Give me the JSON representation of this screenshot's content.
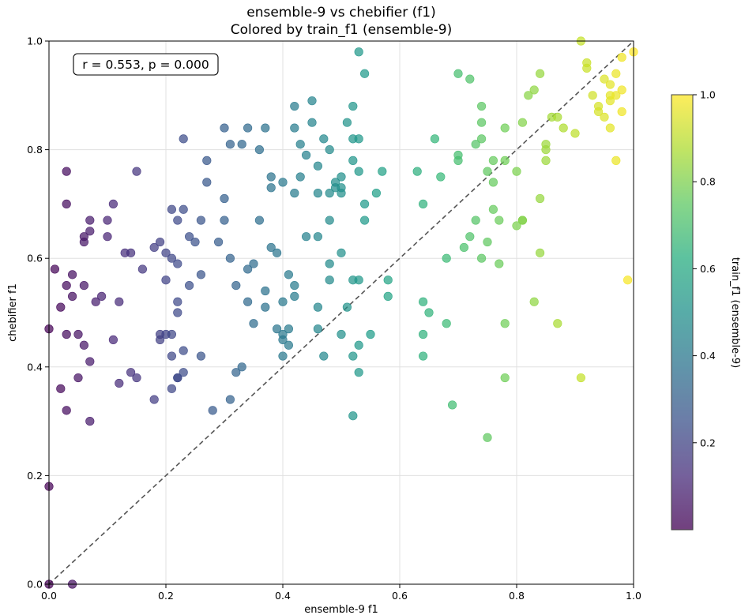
{
  "chart_data": {
    "type": "scatter",
    "title": "ensemble-9 vs chebifier (f1)",
    "subtitle": "Colored by train_f1 (ensemble-9)",
    "xlabel": "ensemble-9 f1",
    "ylabel": "chebifier f1",
    "xlim": [
      0,
      1
    ],
    "ylim": [
      0,
      1
    ],
    "x_ticks": [
      "0.0",
      "0.2",
      "0.4",
      "0.6",
      "0.8",
      "1.0"
    ],
    "y_ticks": [
      "0.0",
      "0.2",
      "0.4",
      "0.6",
      "0.8",
      "1.0"
    ],
    "grid": true,
    "reference_line": "y = x (dashed)",
    "annotation": "r = 0.553, p = 0.000",
    "annotation_placement": "top-left",
    "colormap": "viridis",
    "colorbar": {
      "label": "train_f1 (ensemble-9)",
      "range": [
        0,
        1
      ],
      "ticks": [
        "0.2",
        "0.4",
        "0.6",
        "0.8",
        "1.0"
      ]
    },
    "points": [
      [
        0.0,
        0.0
      ],
      [
        0.0,
        0.47
      ],
      [
        0.0,
        0.18
      ],
      [
        0.04,
        0.0
      ],
      [
        0.01,
        0.58
      ],
      [
        0.02,
        0.36
      ],
      [
        0.03,
        0.32
      ],
      [
        0.02,
        0.51
      ],
      [
        0.03,
        0.46
      ],
      [
        0.03,
        0.76
      ],
      [
        0.03,
        0.55
      ],
      [
        0.04,
        0.53
      ],
      [
        0.04,
        0.57
      ],
      [
        0.03,
        0.7
      ],
      [
        0.05,
        0.38
      ],
      [
        0.05,
        0.46
      ],
      [
        0.06,
        0.64
      ],
      [
        0.06,
        0.44
      ],
      [
        0.06,
        0.55
      ],
      [
        0.06,
        0.63
      ],
      [
        0.07,
        0.65
      ],
      [
        0.07,
        0.67
      ],
      [
        0.07,
        0.41
      ],
      [
        0.07,
        0.3
      ],
      [
        0.08,
        0.52
      ],
      [
        0.09,
        0.53
      ],
      [
        0.1,
        0.64
      ],
      [
        0.1,
        0.67
      ],
      [
        0.11,
        0.7
      ],
      [
        0.11,
        0.45
      ],
      [
        0.12,
        0.37
      ],
      [
        0.12,
        0.52
      ],
      [
        0.13,
        0.61
      ],
      [
        0.14,
        0.61
      ],
      [
        0.14,
        0.39
      ],
      [
        0.15,
        0.38
      ],
      [
        0.15,
        0.76
      ],
      [
        0.16,
        0.58
      ],
      [
        0.18,
        0.34
      ],
      [
        0.18,
        0.62
      ],
      [
        0.19,
        0.45
      ],
      [
        0.19,
        0.63
      ],
      [
        0.19,
        0.46
      ],
      [
        0.2,
        0.56
      ],
      [
        0.2,
        0.46
      ],
      [
        0.2,
        0.61
      ],
      [
        0.21,
        0.36
      ],
      [
        0.21,
        0.46
      ],
      [
        0.21,
        0.42
      ],
      [
        0.21,
        0.6
      ],
      [
        0.21,
        0.69
      ],
      [
        0.22,
        0.52
      ],
      [
        0.22,
        0.5
      ],
      [
        0.22,
        0.59
      ],
      [
        0.22,
        0.67
      ],
      [
        0.22,
        0.38
      ],
      [
        0.22,
        0.38
      ],
      [
        0.23,
        0.69
      ],
      [
        0.23,
        0.43
      ],
      [
        0.23,
        0.82
      ],
      [
        0.23,
        0.39
      ],
      [
        0.24,
        0.64
      ],
      [
        0.24,
        0.55
      ],
      [
        0.25,
        0.63
      ],
      [
        0.26,
        0.57
      ],
      [
        0.26,
        0.42
      ],
      [
        0.26,
        0.67
      ],
      [
        0.27,
        0.74
      ],
      [
        0.27,
        0.78
      ],
      [
        0.28,
        0.32
      ],
      [
        0.29,
        0.63
      ],
      [
        0.3,
        0.84
      ],
      [
        0.3,
        0.67
      ],
      [
        0.3,
        0.71
      ],
      [
        0.31,
        0.81
      ],
      [
        0.31,
        0.6
      ],
      [
        0.31,
        0.34
      ],
      [
        0.32,
        0.39
      ],
      [
        0.32,
        0.55
      ],
      [
        0.33,
        0.81
      ],
      [
        0.33,
        0.4
      ],
      [
        0.34,
        0.52
      ],
      [
        0.34,
        0.58
      ],
      [
        0.34,
        0.84
      ],
      [
        0.35,
        0.48
      ],
      [
        0.35,
        0.59
      ],
      [
        0.36,
        0.8
      ],
      [
        0.36,
        0.67
      ],
      [
        0.37,
        0.84
      ],
      [
        0.37,
        0.51
      ],
      [
        0.37,
        0.54
      ],
      [
        0.38,
        0.62
      ],
      [
        0.38,
        0.73
      ],
      [
        0.38,
        0.75
      ],
      [
        0.39,
        0.47
      ],
      [
        0.39,
        0.61
      ],
      [
        0.4,
        0.74
      ],
      [
        0.4,
        0.52
      ],
      [
        0.4,
        0.46
      ],
      [
        0.4,
        0.45
      ],
      [
        0.4,
        0.42
      ],
      [
        0.41,
        0.47
      ],
      [
        0.41,
        0.57
      ],
      [
        0.41,
        0.44
      ],
      [
        0.42,
        0.84
      ],
      [
        0.42,
        0.53
      ],
      [
        0.42,
        0.55
      ],
      [
        0.42,
        0.88
      ],
      [
        0.42,
        0.72
      ],
      [
        0.43,
        0.81
      ],
      [
        0.43,
        0.75
      ],
      [
        0.44,
        0.64
      ],
      [
        0.44,
        0.79
      ],
      [
        0.45,
        0.89
      ],
      [
        0.45,
        0.85
      ],
      [
        0.46,
        0.77
      ],
      [
        0.46,
        0.51
      ],
      [
        0.46,
        0.64
      ],
      [
        0.46,
        0.47
      ],
      [
        0.46,
        0.72
      ],
      [
        0.47,
        0.82
      ],
      [
        0.47,
        0.42
      ],
      [
        0.48,
        0.8
      ],
      [
        0.48,
        0.56
      ],
      [
        0.48,
        0.59
      ],
      [
        0.48,
        0.67
      ],
      [
        0.48,
        0.72
      ],
      [
        0.49,
        0.73
      ],
      [
        0.49,
        0.74
      ],
      [
        0.5,
        0.72
      ],
      [
        0.5,
        0.61
      ],
      [
        0.5,
        0.46
      ],
      [
        0.5,
        0.75
      ],
      [
        0.5,
        0.73
      ],
      [
        0.51,
        0.51
      ],
      [
        0.51,
        0.85
      ],
      [
        0.52,
        0.88
      ],
      [
        0.52,
        0.82
      ],
      [
        0.52,
        0.56
      ],
      [
        0.52,
        0.42
      ],
      [
        0.52,
        0.78
      ],
      [
        0.52,
        0.31
      ],
      [
        0.53,
        0.76
      ],
      [
        0.53,
        0.39
      ],
      [
        0.53,
        0.82
      ],
      [
        0.53,
        0.56
      ],
      [
        0.53,
        0.44
      ],
      [
        0.53,
        0.98
      ],
      [
        0.54,
        0.94
      ],
      [
        0.54,
        0.67
      ],
      [
        0.54,
        0.7
      ],
      [
        0.55,
        0.46
      ],
      [
        0.56,
        0.72
      ],
      [
        0.57,
        0.76
      ],
      [
        0.58,
        0.53
      ],
      [
        0.58,
        0.56
      ],
      [
        0.63,
        0.76
      ],
      [
        0.64,
        0.42
      ],
      [
        0.64,
        0.52
      ],
      [
        0.64,
        0.46
      ],
      [
        0.64,
        0.7
      ],
      [
        0.65,
        0.5
      ],
      [
        0.66,
        0.82
      ],
      [
        0.67,
        0.75
      ],
      [
        0.68,
        0.48
      ],
      [
        0.68,
        0.6
      ],
      [
        0.69,
        0.33
      ],
      [
        0.7,
        0.94
      ],
      [
        0.7,
        0.79
      ],
      [
        0.7,
        0.78
      ],
      [
        0.71,
        0.62
      ],
      [
        0.72,
        0.64
      ],
      [
        0.72,
        0.93
      ],
      [
        0.73,
        0.81
      ],
      [
        0.73,
        0.67
      ],
      [
        0.74,
        0.82
      ],
      [
        0.74,
        0.85
      ],
      [
        0.74,
        0.88
      ],
      [
        0.74,
        0.6
      ],
      [
        0.75,
        0.63
      ],
      [
        0.75,
        0.76
      ],
      [
        0.75,
        0.27
      ],
      [
        0.76,
        0.78
      ],
      [
        0.76,
        0.74
      ],
      [
        0.76,
        0.69
      ],
      [
        0.77,
        0.67
      ],
      [
        0.77,
        0.59
      ],
      [
        0.78,
        0.84
      ],
      [
        0.78,
        0.78
      ],
      [
        0.78,
        0.48
      ],
      [
        0.78,
        0.38
      ],
      [
        0.8,
        0.66
      ],
      [
        0.8,
        0.76
      ],
      [
        0.81,
        0.67
      ],
      [
        0.81,
        0.85
      ],
      [
        0.81,
        0.67
      ],
      [
        0.82,
        0.9
      ],
      [
        0.83,
        0.52
      ],
      [
        0.83,
        0.91
      ],
      [
        0.84,
        0.94
      ],
      [
        0.84,
        0.61
      ],
      [
        0.84,
        0.71
      ],
      [
        0.85,
        0.8
      ],
      [
        0.85,
        0.81
      ],
      [
        0.85,
        0.78
      ],
      [
        0.86,
        0.86
      ],
      [
        0.87,
        0.86
      ],
      [
        0.87,
        0.48
      ],
      [
        0.88,
        0.84
      ],
      [
        0.9,
        0.83
      ],
      [
        0.91,
        0.38
      ],
      [
        0.91,
        1.0
      ],
      [
        0.92,
        0.95
      ],
      [
        0.92,
        0.96
      ],
      [
        0.93,
        0.9
      ],
      [
        0.94,
        0.87
      ],
      [
        0.94,
        0.88
      ],
      [
        0.95,
        0.93
      ],
      [
        0.95,
        0.86
      ],
      [
        0.96,
        0.92
      ],
      [
        0.96,
        0.9
      ],
      [
        0.96,
        0.89
      ],
      [
        0.96,
        0.84
      ],
      [
        0.97,
        0.78
      ],
      [
        0.97,
        0.9
      ],
      [
        0.97,
        0.94
      ],
      [
        0.98,
        0.91
      ],
      [
        0.98,
        0.87
      ],
      [
        0.98,
        0.97
      ],
      [
        0.99,
        0.56
      ],
      [
        1.0,
        0.98
      ]
    ]
  }
}
